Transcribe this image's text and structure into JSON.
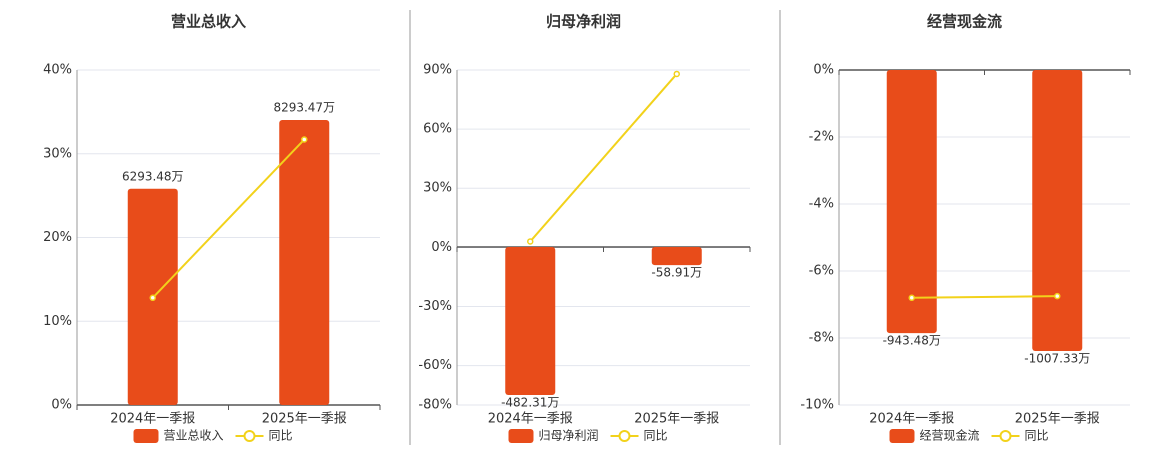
{
  "chart_data": [
    {
      "type": "bar",
      "title": "营业总收入",
      "categories": [
        "2024年一季报",
        "2025年一季报"
      ],
      "series": [
        {
          "name": "营业总收入",
          "color": "#e84c1a",
          "axis": "y2",
          "values": [
            6293.48,
            8293.47
          ],
          "value_labels": [
            "6293.48万",
            "8293.47万"
          ]
        },
        {
          "name": "同比",
          "color": "#f2d21b",
          "type": "line",
          "values": [
            12.8,
            31.7
          ]
        }
      ],
      "ylim": [
        0,
        40
      ],
      "yticks": [
        {
          "value": 0,
          "label": "0%"
        },
        {
          "value": 10,
          "label": "10%"
        },
        {
          "value": 20,
          "label": "20%"
        },
        {
          "value": 30,
          "label": "30%"
        },
        {
          "value": 40,
          "label": "40%"
        }
      ],
      "y2lim": [
        0,
        9750
      ],
      "grid": true
    },
    {
      "type": "bar",
      "title": "归母净利润",
      "categories": [
        "2024年一季报",
        "2025年一季报"
      ],
      "series": [
        {
          "name": "归母净利润",
          "color": "#e84c1a",
          "axis": "y2",
          "values": [
            -482.31,
            -58.91
          ],
          "value_labels": [
            "-482.31万",
            "-58.91万"
          ]
        },
        {
          "name": "同比",
          "color": "#f2d21b",
          "type": "line",
          "values": [
            3,
            88
          ]
        }
      ],
      "ylim": [
        -80,
        90
      ],
      "yticks": [
        {
          "value": -80,
          "label": "-80%"
        },
        {
          "value": -60,
          "label": "-60%"
        },
        {
          "value": -30,
          "label": "-30%"
        },
        {
          "value": 0,
          "label": "0%"
        },
        {
          "value": 30,
          "label": "30%"
        },
        {
          "value": 60,
          "label": "60%"
        },
        {
          "value": 90,
          "label": "90%"
        }
      ],
      "y2lim": [
        -515,
        577
      ],
      "grid": true
    },
    {
      "type": "bar",
      "title": "经营现金流",
      "categories": [
        "2024年一季报",
        "2025年一季报"
      ],
      "series": [
        {
          "name": "经营现金流",
          "color": "#e84c1a",
          "axis": "y2",
          "values": [
            -943.48,
            -1007.33
          ],
          "value_labels": [
            "-943.48万",
            "-1007.33万"
          ]
        },
        {
          "name": "同比",
          "color": "#f2d21b",
          "type": "line",
          "values": [
            -6.8,
            -6.75
          ]
        }
      ],
      "ylim": [
        -10,
        0
      ],
      "yticks": [
        {
          "value": -10,
          "label": "-10%"
        },
        {
          "value": -8,
          "label": "-8%"
        },
        {
          "value": -6,
          "label": "-6%"
        },
        {
          "value": -4,
          "label": "-4%"
        },
        {
          "value": -2,
          "label": "-2%"
        },
        {
          "value": 0,
          "label": "0%"
        }
      ],
      "y2lim": [
        -1201,
        0
      ],
      "grid": true
    }
  ]
}
